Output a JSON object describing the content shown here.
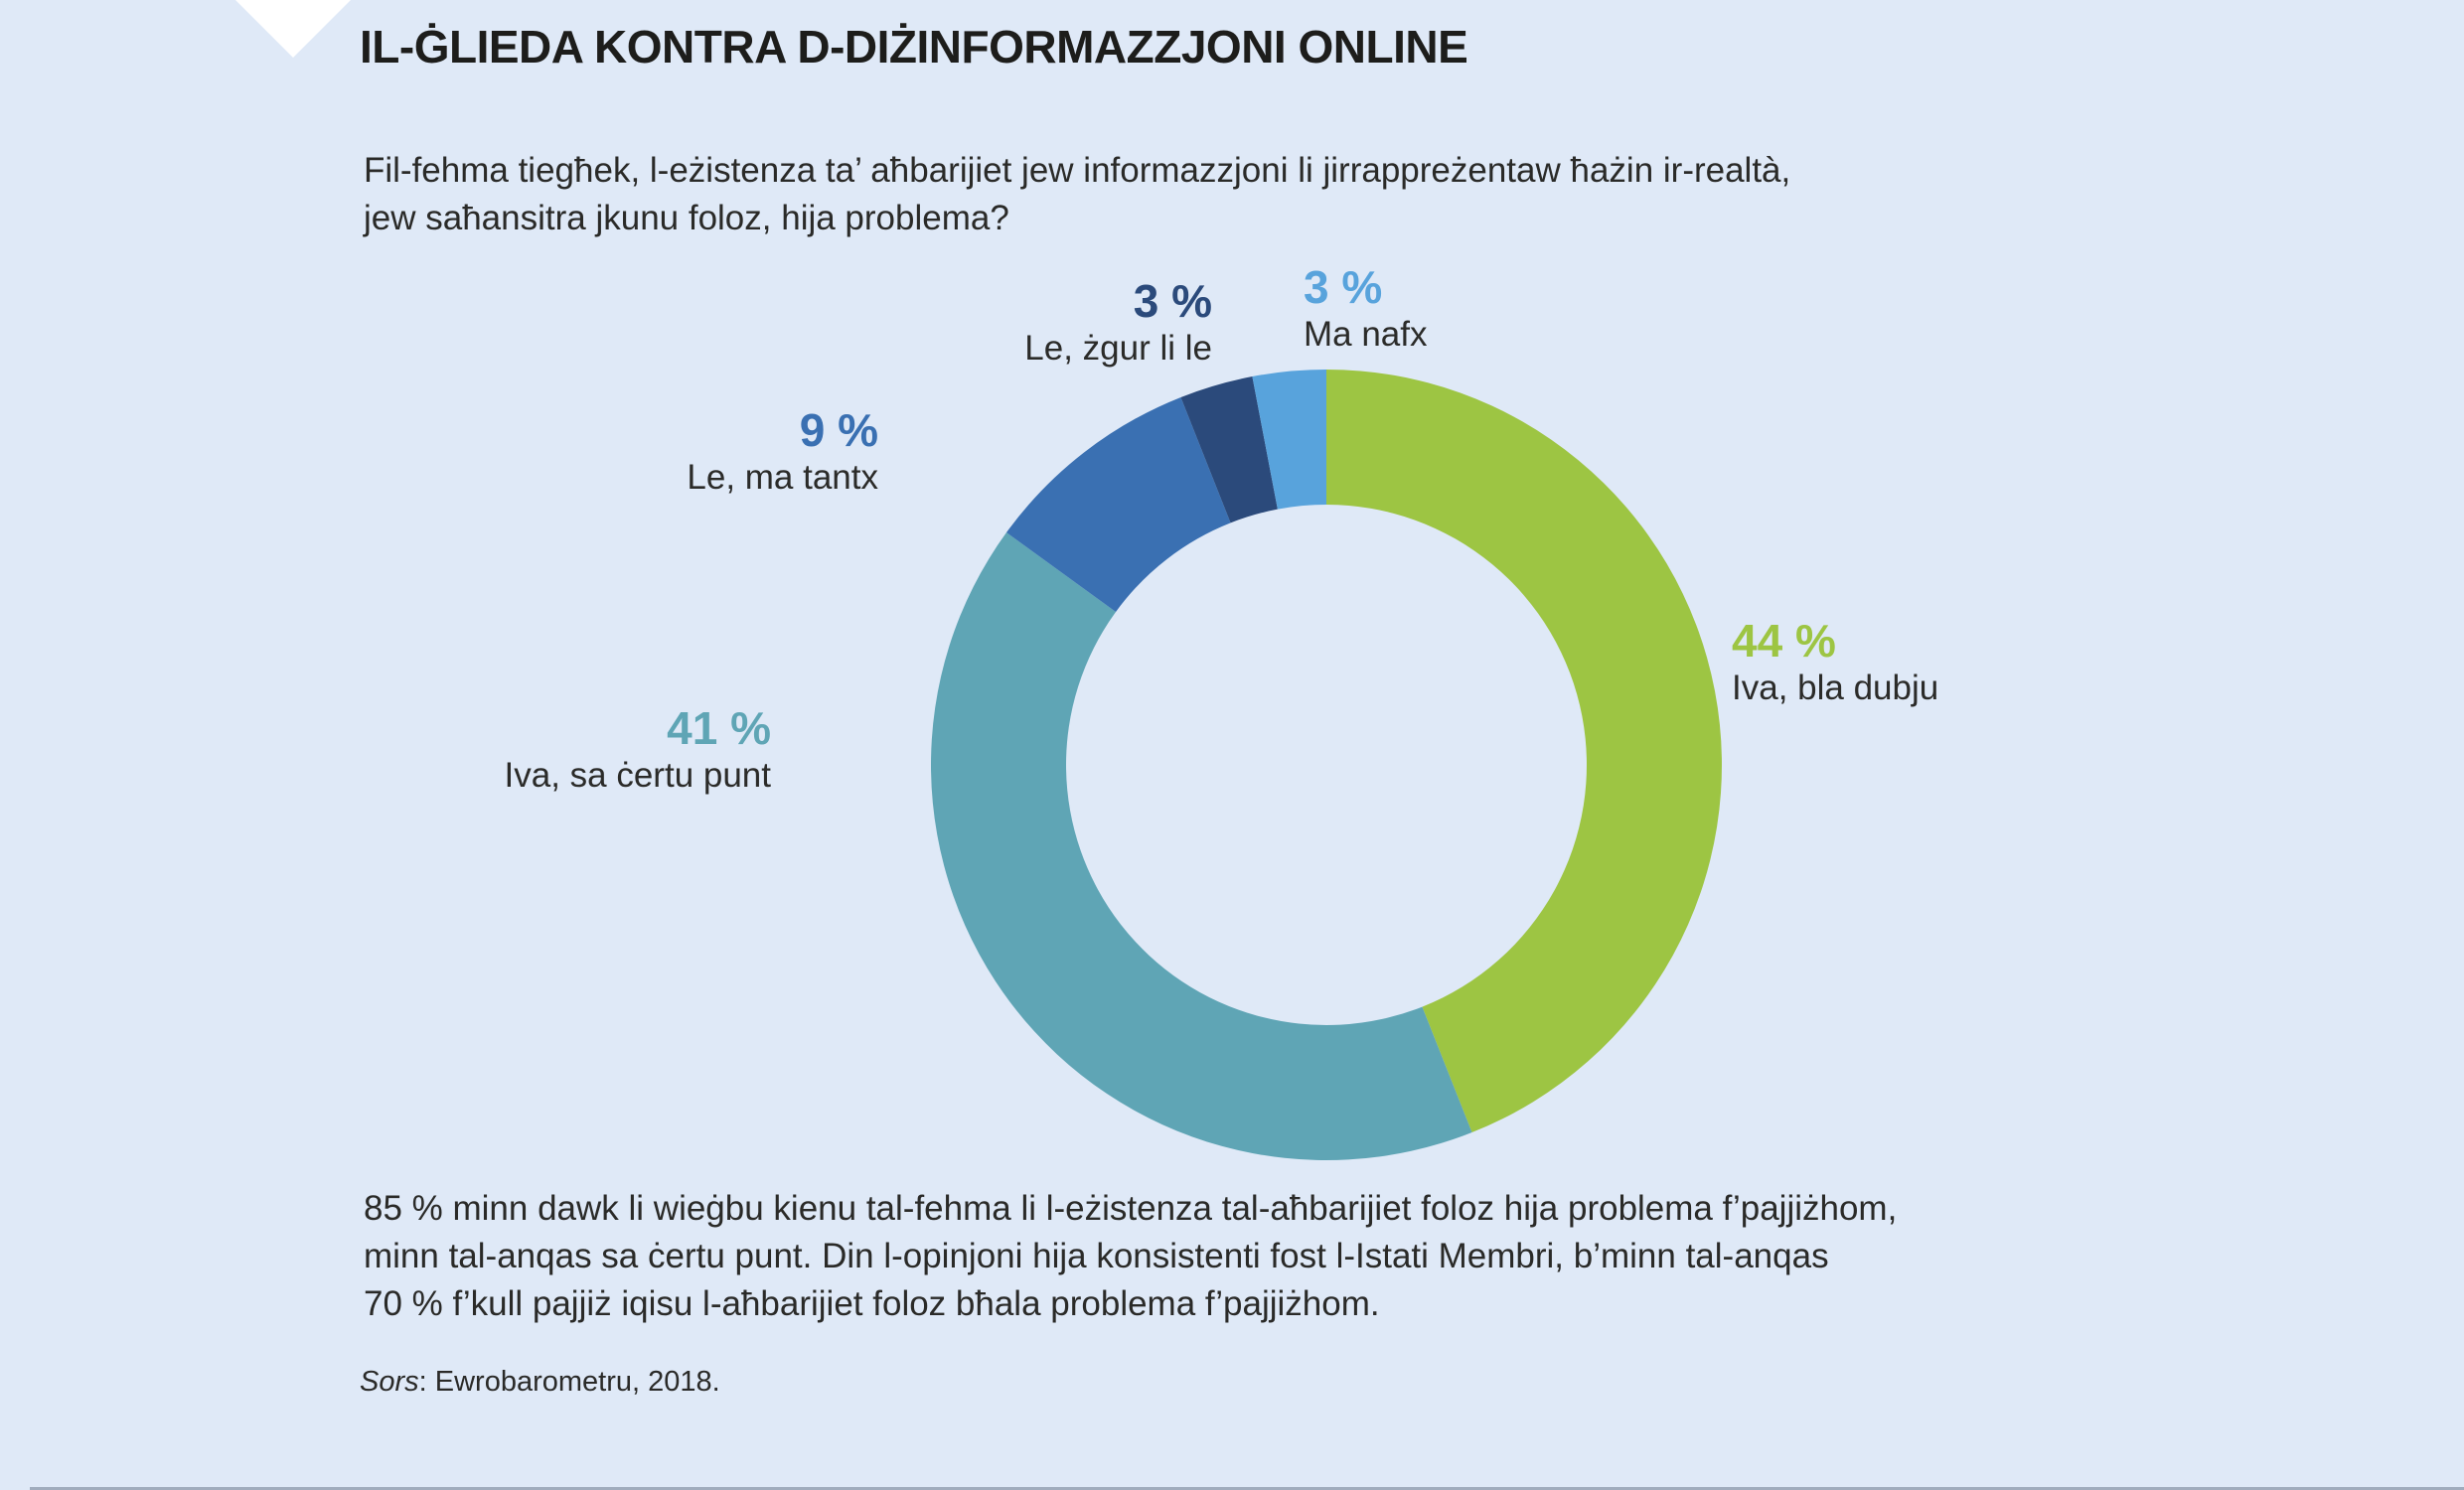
{
  "page": {
    "background_color": "#dfe9f7",
    "text_color": "#2a2a28"
  },
  "header": {
    "title": "IL-ĠLIEDA KONTRA D-DIŻINFORMAZZJONI ONLINE"
  },
  "question": {
    "lines": [
      "Fil-fehma tiegħek, l-eżistenza ta’ aħbarijiet jew informazzjoni li jirrappreżentaw ħażin ir-realtà,",
      "jew saħansitra jkunu foloz, hija problema?"
    ]
  },
  "chart_data": {
    "type": "pie",
    "variant": "donut",
    "title": "Fil-fehma tiegħek, l-eżistenza ta’ aħbarijiet jew informazzjoni li jirrappreżentaw ħażin ir-realtà, jew saħansitra jkunu foloz, hija problema?",
    "total": 100,
    "start_angle_deg": 0,
    "direction": "clockwise",
    "legend_position": "callouts-around-donut",
    "segments": [
      {
        "label": "Iva, bla dubju",
        "value": 44,
        "display": "44 %",
        "color": "#9dc543"
      },
      {
        "label": "Iva, sa ċertu punt",
        "value": 41,
        "display": "41 %",
        "color": "#5fa5b5"
      },
      {
        "label": "Le, ma tantx",
        "value": 9,
        "display": "9 %",
        "color": "#3a70b2"
      },
      {
        "label": "Le, żgur li le",
        "value": 3,
        "display": "3 %",
        "color": "#2b4a7b"
      },
      {
        "label": "Ma nafx",
        "value": 3,
        "display": "3 %",
        "color": "#58a3dc"
      }
    ]
  },
  "summary": {
    "lines": [
      "85 % minn dawk li wieġbu kienu tal-fehma li l-eżistenza tal-aħbarijiet foloz hija problema f’pajjiżhom,",
      "minn tal-anqas sa ċertu punt. Din l-opinjoni hija konsistenti fost l-Istati Membri, b’minn tal-anqas",
      "70 % f’kull pajjiż iqisu l-aħbarijiet foloz bħala problema f’pajjiżhom."
    ]
  },
  "source": {
    "label": "Sors",
    "text": ": Ewrobarometru, 2018."
  }
}
